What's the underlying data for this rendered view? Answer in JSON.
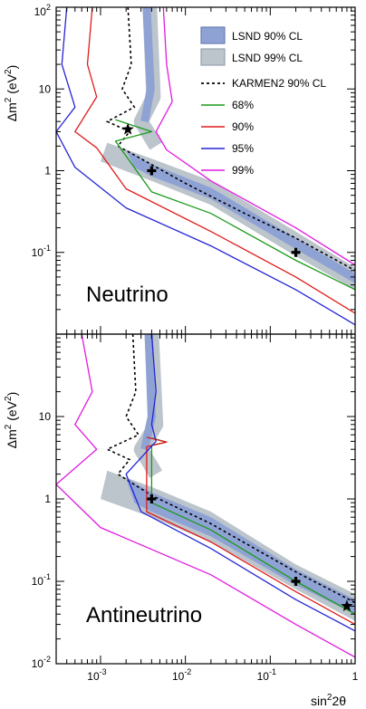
{
  "chart_data": [
    {
      "type": "line",
      "panel_label": "Neutrino",
      "xscale": "log",
      "yscale": "log",
      "xlim": [
        0.0003,
        1
      ],
      "ylim": [
        0.01,
        100
      ],
      "xlabel": "sin²2θ",
      "ylabel": "Δm² (eV²)",
      "ylabel_parts": {
        "base": "Δm",
        "sup": "2",
        "unit_open": " (eV",
        "unit_sup": "2",
        "unit_close": ")"
      },
      "y_ticks": [
        {
          "value": 100,
          "label": "10",
          "sup": "2"
        },
        {
          "value": 10,
          "label": "10"
        },
        {
          "value": 1,
          "label": "1"
        },
        {
          "value": 0.1,
          "label": "10",
          "sup": "-1"
        }
      ],
      "legend": [
        {
          "label": "LSND 90% CL",
          "kind": "box",
          "color": "#8fa2d4",
          "border": "#6a7fb5"
        },
        {
          "label": "LSND 99% CL",
          "kind": "box",
          "color": "#bcc4cc",
          "border": "#98a2ad"
        },
        {
          "label": "KARMEN2 90% CL",
          "kind": "dashed",
          "color": "#000000"
        },
        {
          "label": "68%",
          "kind": "line",
          "color": "#1a9a1a"
        },
        {
          "label": "90%",
          "kind": "line",
          "color": "#e01b1b"
        },
        {
          "label": "95%",
          "kind": "line",
          "color": "#2424d6"
        },
        {
          "label": "99%",
          "kind": "line",
          "color": "#e01be0"
        }
      ],
      "bands": {
        "lsnd99": {
          "color": "#bcc4cc",
          "vertical": [
            [
              0.0038,
              100
            ],
            [
              0.0042,
              8
            ],
            [
              0.003,
              4
            ],
            [
              0.0045,
              2
            ]
          ],
          "diagonal_upper": [
            [
              0.0012,
              2.2
            ],
            [
              0.004,
              1.4
            ],
            [
              0.02,
              0.75
            ],
            [
              0.2,
              0.18
            ],
            [
              1,
              0.065
            ]
          ],
          "diagonal_lower": [
            [
              0.001,
              1.3
            ],
            [
              0.004,
              0.75
            ],
            [
              0.02,
              0.38
            ],
            [
              0.2,
              0.09
            ],
            [
              1,
              0.035
            ]
          ]
        },
        "lsnd90": {
          "color": "#8fa2d4",
          "vertical": [
            [
              0.0035,
              100
            ],
            [
              0.0039,
              10
            ],
            [
              0.0033,
              4
            ]
          ],
          "diagonal_upper": [
            [
              0.002,
              1.8
            ],
            [
              0.004,
              1.2
            ],
            [
              0.02,
              0.62
            ],
            [
              0.2,
              0.15
            ],
            [
              1,
              0.055
            ]
          ],
          "diagonal_lower": [
            [
              0.0025,
              1.1
            ],
            [
              0.004,
              0.85
            ],
            [
              0.02,
              0.45
            ],
            [
              0.2,
              0.11
            ],
            [
              1,
              0.042
            ]
          ]
        }
      },
      "karmen2": {
        "color": "#000000",
        "points": [
          [
            0.0021,
            100
          ],
          [
            0.0023,
            20
          ],
          [
            0.0018,
            10
          ],
          [
            0.0025,
            6
          ],
          [
            0.0012,
            4
          ],
          [
            0.0022,
            3
          ],
          [
            0.0016,
            2
          ],
          [
            0.003,
            1.4
          ],
          [
            0.01,
            0.7
          ],
          [
            0.05,
            0.3
          ],
          [
            0.2,
            0.15
          ],
          [
            1,
            0.06
          ]
        ]
      },
      "series": [
        {
          "name": "68%",
          "color": "#1a9a1a",
          "points": [
            [
              0.0015,
              4.2
            ],
            [
              0.004,
              3
            ],
            [
              0.0015,
              2.3
            ],
            [
              0.004,
              0.55
            ],
            [
              0.02,
              0.3
            ],
            [
              0.2,
              0.08
            ],
            [
              1,
              0.035
            ]
          ]
        },
        {
          "name": "90%",
          "color": "#e01b1b",
          "points": [
            [
              0.0008,
              100
            ],
            [
              0.0007,
              20
            ],
            [
              0.0009,
              8
            ],
            [
              0.0005,
              3
            ],
            [
              0.0009,
              1.9
            ],
            [
              0.002,
              0.6
            ],
            [
              0.02,
              0.18
            ],
            [
              0.2,
              0.05
            ],
            [
              1,
              0.018
            ]
          ]
        },
        {
          "name": "95%",
          "color": "#2424d6",
          "points": [
            [
              0.0004,
              100
            ],
            [
              0.00035,
              20
            ],
            [
              0.0005,
              6
            ],
            [
              0.0003,
              3
            ],
            [
              0.0005,
              1.1
            ],
            [
              0.002,
              0.35
            ],
            [
              0.02,
              0.12
            ],
            [
              0.2,
              0.035
            ],
            [
              1,
              0.013
            ]
          ]
        },
        {
          "name": "99%",
          "color": "#e01be0",
          "points": [
            [
              0.0055,
              100
            ],
            [
              0.006,
              20
            ],
            [
              0.007,
              7
            ],
            [
              0.0045,
              3
            ],
            [
              0.006,
              1.8
            ],
            [
              0.02,
              0.75
            ],
            [
              0.2,
              0.2
            ],
            [
              1,
              0.07
            ]
          ]
        }
      ],
      "markers": [
        {
          "symbol": "star",
          "x": 0.0021,
          "y": 3.2
        },
        {
          "symbol": "cross",
          "x": 0.004,
          "y": 1.0
        },
        {
          "symbol": "cross",
          "x": 0.2,
          "y": 0.1
        }
      ]
    },
    {
      "type": "line",
      "panel_label": "Antineutrino",
      "xscale": "log",
      "yscale": "log",
      "xlim": [
        0.0003,
        1
      ],
      "ylim": [
        0.01,
        100
      ],
      "xlabel": "sin²2θ",
      "ylabel": "Δm² (eV²)",
      "ylabel_parts": {
        "base": "Δm",
        "sup": "2",
        "unit_open": " (eV",
        "unit_sup": "2",
        "unit_close": ")"
      },
      "y_ticks": [
        {
          "value": 10,
          "label": "10"
        },
        {
          "value": 1,
          "label": "1"
        },
        {
          "value": 0.1,
          "label": "10",
          "sup": "-1"
        },
        {
          "value": 0.01,
          "label": "10",
          "sup": "-2"
        }
      ],
      "x_ticks": [
        {
          "value": 0.001,
          "label": "10",
          "sup": "-3"
        },
        {
          "value": 0.01,
          "label": "10",
          "sup": "-2"
        },
        {
          "value": 0.1,
          "label": "10",
          "sup": "-1"
        },
        {
          "value": 1,
          "label": "1"
        }
      ],
      "bands": {
        "lsnd99": {
          "color": "#bcc4cc",
          "vertical": [
            [
              0.004,
              100
            ],
            [
              0.0045,
              8
            ],
            [
              0.003,
              4
            ],
            [
              0.0045,
              2
            ]
          ],
          "diagonal_upper": [
            [
              0.0012,
              2.2
            ],
            [
              0.004,
              1.4
            ],
            [
              0.02,
              0.7
            ],
            [
              0.2,
              0.16
            ],
            [
              1,
              0.07
            ]
          ],
          "diagonal_lower": [
            [
              0.001,
              1.0
            ],
            [
              0.004,
              0.6
            ],
            [
              0.02,
              0.3
            ],
            [
              0.2,
              0.08
            ],
            [
              1,
              0.033
            ]
          ]
        },
        "lsnd90": {
          "color": "#8fa2d4",
          "vertical": [
            [
              0.0037,
              100
            ],
            [
              0.004,
              10
            ],
            [
              0.0033,
              4
            ]
          ],
          "diagonal_upper": [
            [
              0.002,
              1.8
            ],
            [
              0.004,
              1.2
            ],
            [
              0.02,
              0.6
            ],
            [
              0.2,
              0.14
            ],
            [
              1,
              0.06
            ]
          ],
          "diagonal_lower": [
            [
              0.0025,
              0.9
            ],
            [
              0.004,
              0.7
            ],
            [
              0.02,
              0.35
            ],
            [
              0.2,
              0.09
            ],
            [
              1,
              0.04
            ]
          ]
        }
      },
      "karmen2": {
        "color": "#000000",
        "points": [
          [
            0.0024,
            100
          ],
          [
            0.0026,
            20
          ],
          [
            0.002,
            10
          ],
          [
            0.0028,
            6
          ],
          [
            0.0012,
            4
          ],
          [
            0.0022,
            3
          ],
          [
            0.0016,
            2
          ],
          [
            0.004,
            1.1
          ],
          [
            0.02,
            0.5
          ],
          [
            0.2,
            0.13
          ],
          [
            1,
            0.055
          ]
        ]
      },
      "series": [
        {
          "name": "68%",
          "color": "#1a9a1a",
          "points": [
            [
              0.004,
              5.5
            ],
            [
              0.006,
              4.9
            ],
            [
              0.004,
              4.5
            ],
            [
              0.004,
              0.9
            ],
            [
              0.02,
              0.42
            ],
            [
              0.2,
              0.1
            ],
            [
              1,
              0.04
            ]
          ]
        },
        {
          "name": "90%",
          "color": "#e01b1b",
          "points": [
            [
              0.0035,
              5.6
            ],
            [
              0.006,
              4.9
            ],
            [
              0.0035,
              4.3
            ],
            [
              0.0035,
              0.7
            ],
            [
              0.02,
              0.3
            ],
            [
              0.2,
              0.075
            ],
            [
              1,
              0.03
            ]
          ]
        },
        {
          "name": "95%",
          "color": "#2424d6",
          "points": [
            [
              0.004,
              100
            ],
            [
              0.0045,
              20
            ],
            [
              0.004,
              8
            ],
            [
              0.0045,
              5
            ],
            [
              0.002,
              2
            ],
            [
              0.003,
              0.7
            ],
            [
              0.02,
              0.25
            ],
            [
              0.2,
              0.06
            ],
            [
              1,
              0.025
            ]
          ]
        },
        {
          "name": "99%",
          "color": "#e01be0",
          "points": [
            [
              0.0006,
              100
            ],
            [
              0.0008,
              20
            ],
            [
              0.0005,
              8
            ],
            [
              0.0009,
              4
            ],
            [
              0.0003,
              1.5
            ],
            [
              0.001,
              0.45
            ],
            [
              0.02,
              0.12
            ],
            [
              0.2,
              0.03
            ],
            [
              1,
              0.012
            ]
          ]
        }
      ],
      "markers": [
        {
          "symbol": "cross",
          "x": 0.004,
          "y": 1.0
        },
        {
          "symbol": "cross",
          "x": 0.2,
          "y": 0.1
        },
        {
          "symbol": "star",
          "x": 0.8,
          "y": 0.05
        }
      ]
    }
  ]
}
